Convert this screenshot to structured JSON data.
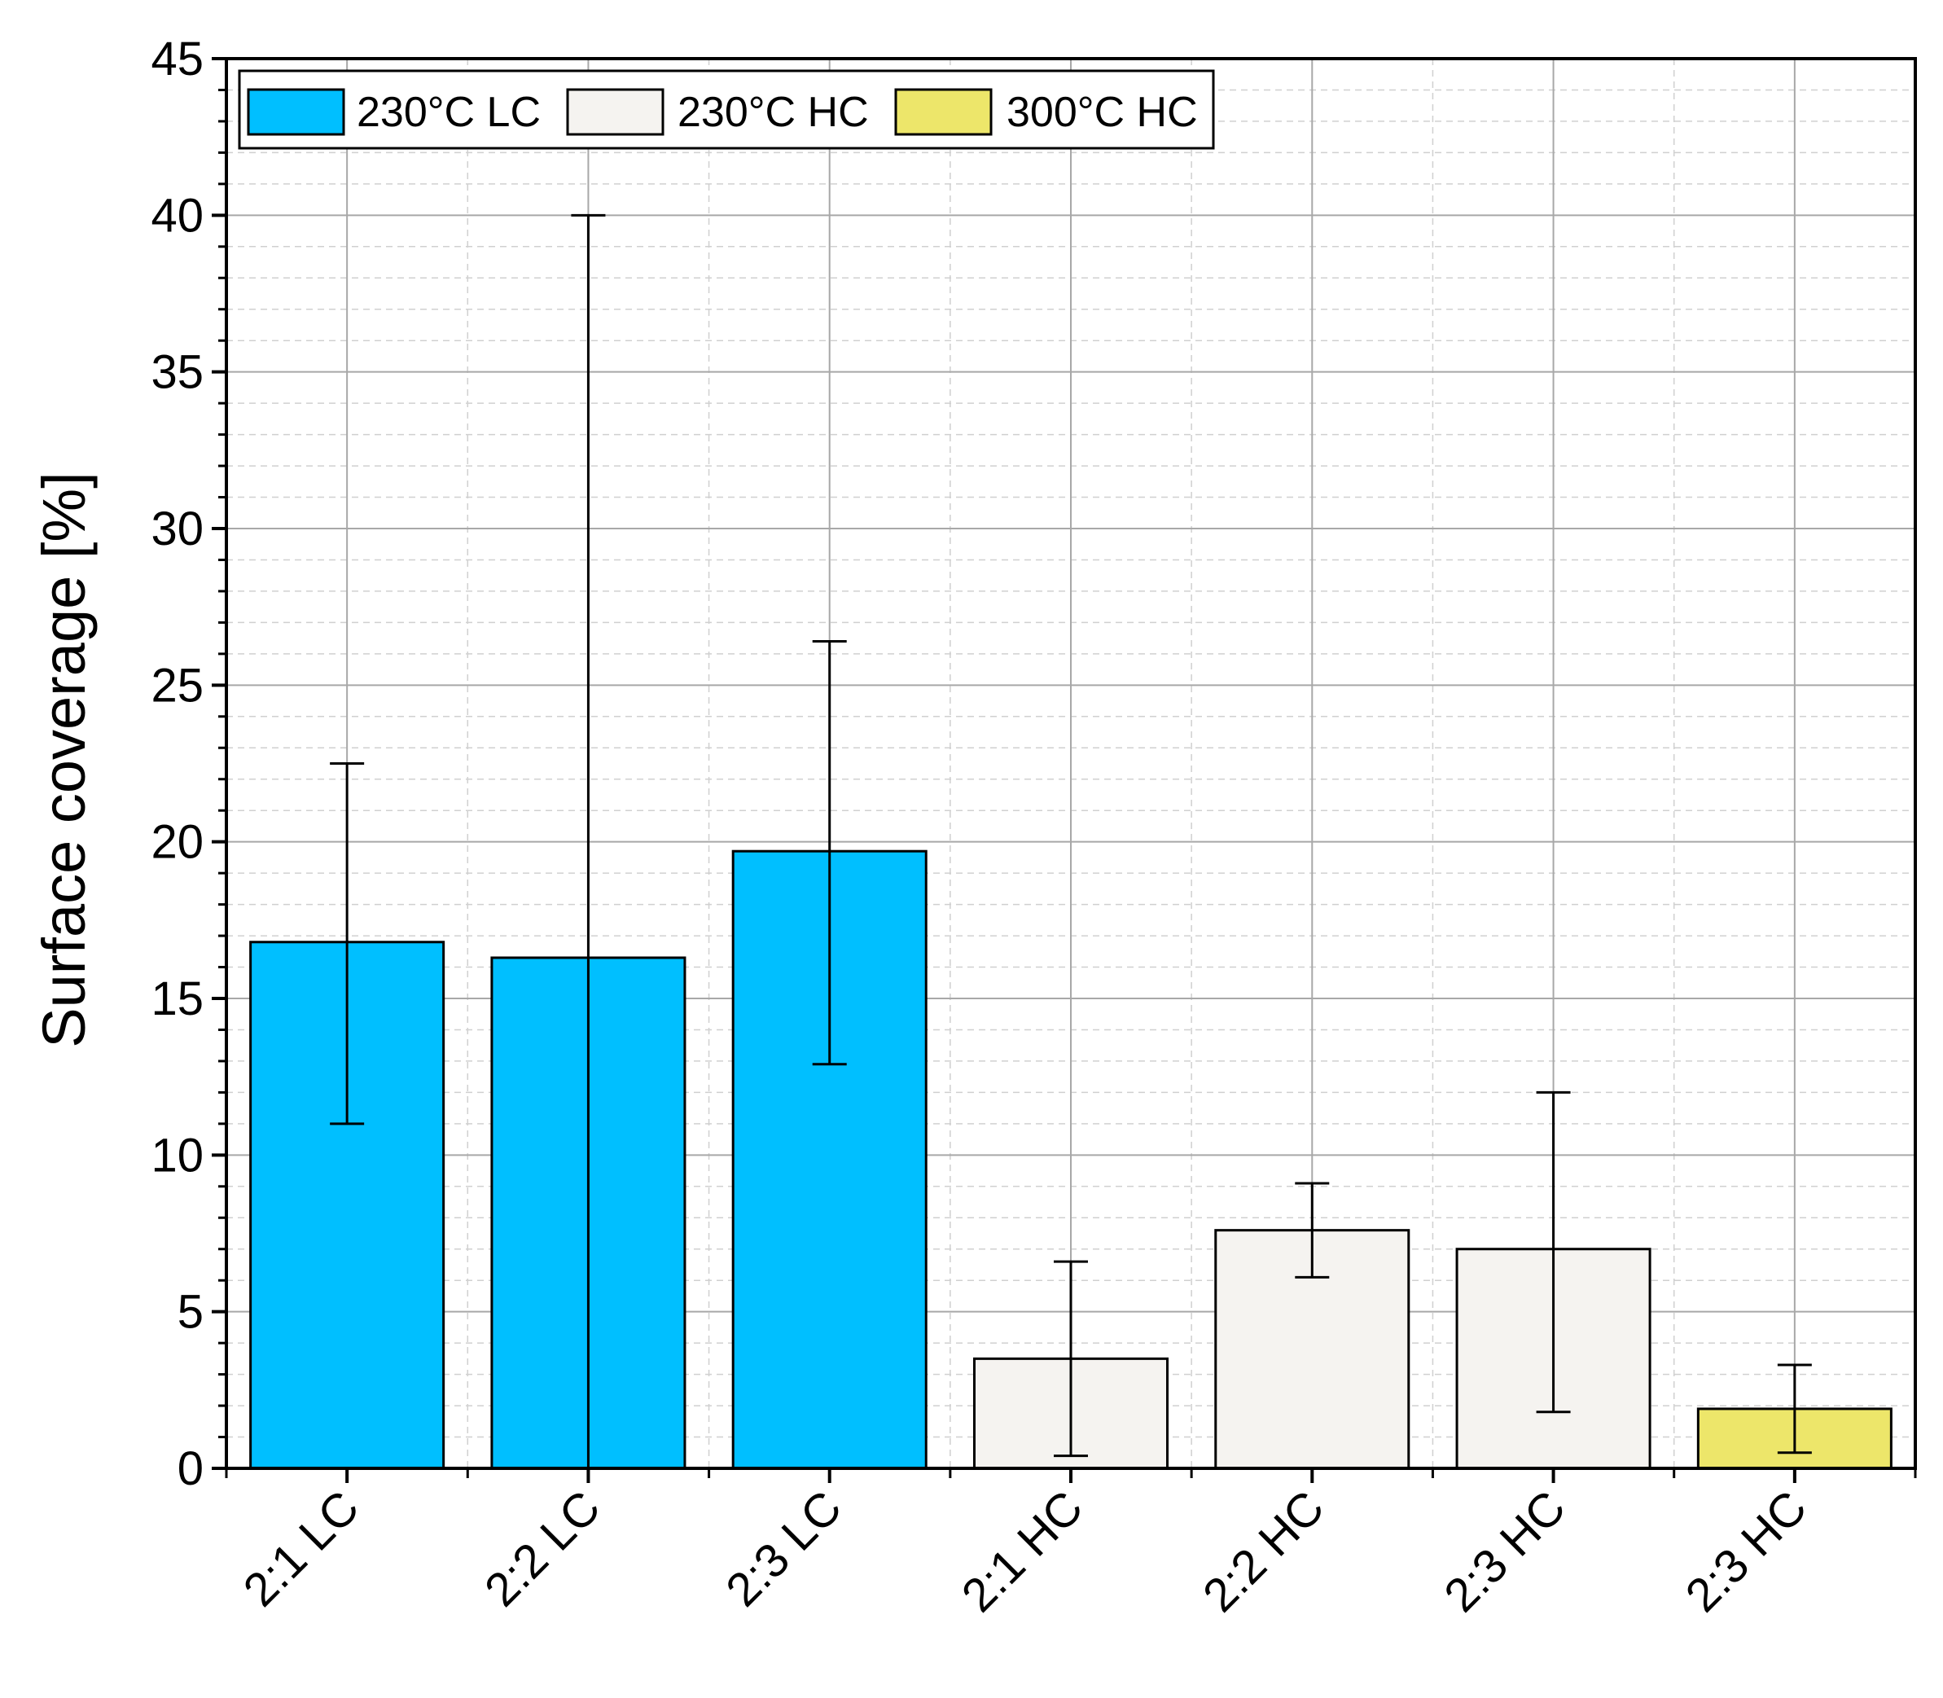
{
  "chart_data": {
    "type": "bar",
    "ylabel": "Surface coverage [%]",
    "xlabel": "",
    "ylim": [
      0,
      45
    ],
    "yticks": [
      0,
      5,
      10,
      15,
      20,
      25,
      30,
      35,
      40,
      45
    ],
    "yticks_label": [
      "0",
      "5",
      "10",
      "15",
      "20",
      "25",
      "30",
      "35",
      "40",
      "45"
    ],
    "grid": true,
    "legend_position": "top-left",
    "categories": [
      "2:1 LC",
      "2:2 LC",
      "2:3 LC",
      "2:1 HC",
      "2:2 HC",
      "2:3 HC",
      "2:3 HC"
    ],
    "values": [
      16.8,
      16.3,
      19.7,
      3.5,
      7.6,
      7.0,
      1.9
    ],
    "error_low": [
      11.0,
      0.0,
      12.9,
      0.4,
      6.1,
      1.8,
      0.5
    ],
    "error_high": [
      22.5,
      40.0,
      26.4,
      6.6,
      9.1,
      12.0,
      3.3
    ],
    "bar_series": [
      0,
      0,
      0,
      1,
      1,
      1,
      2
    ],
    "legend": [
      {
        "label": "230°C LC",
        "color": "#00bfff"
      },
      {
        "label": "230°C HC",
        "color": "#f5f3f0"
      },
      {
        "label": "300°C HC",
        "color": "#ede66a"
      }
    ]
  }
}
